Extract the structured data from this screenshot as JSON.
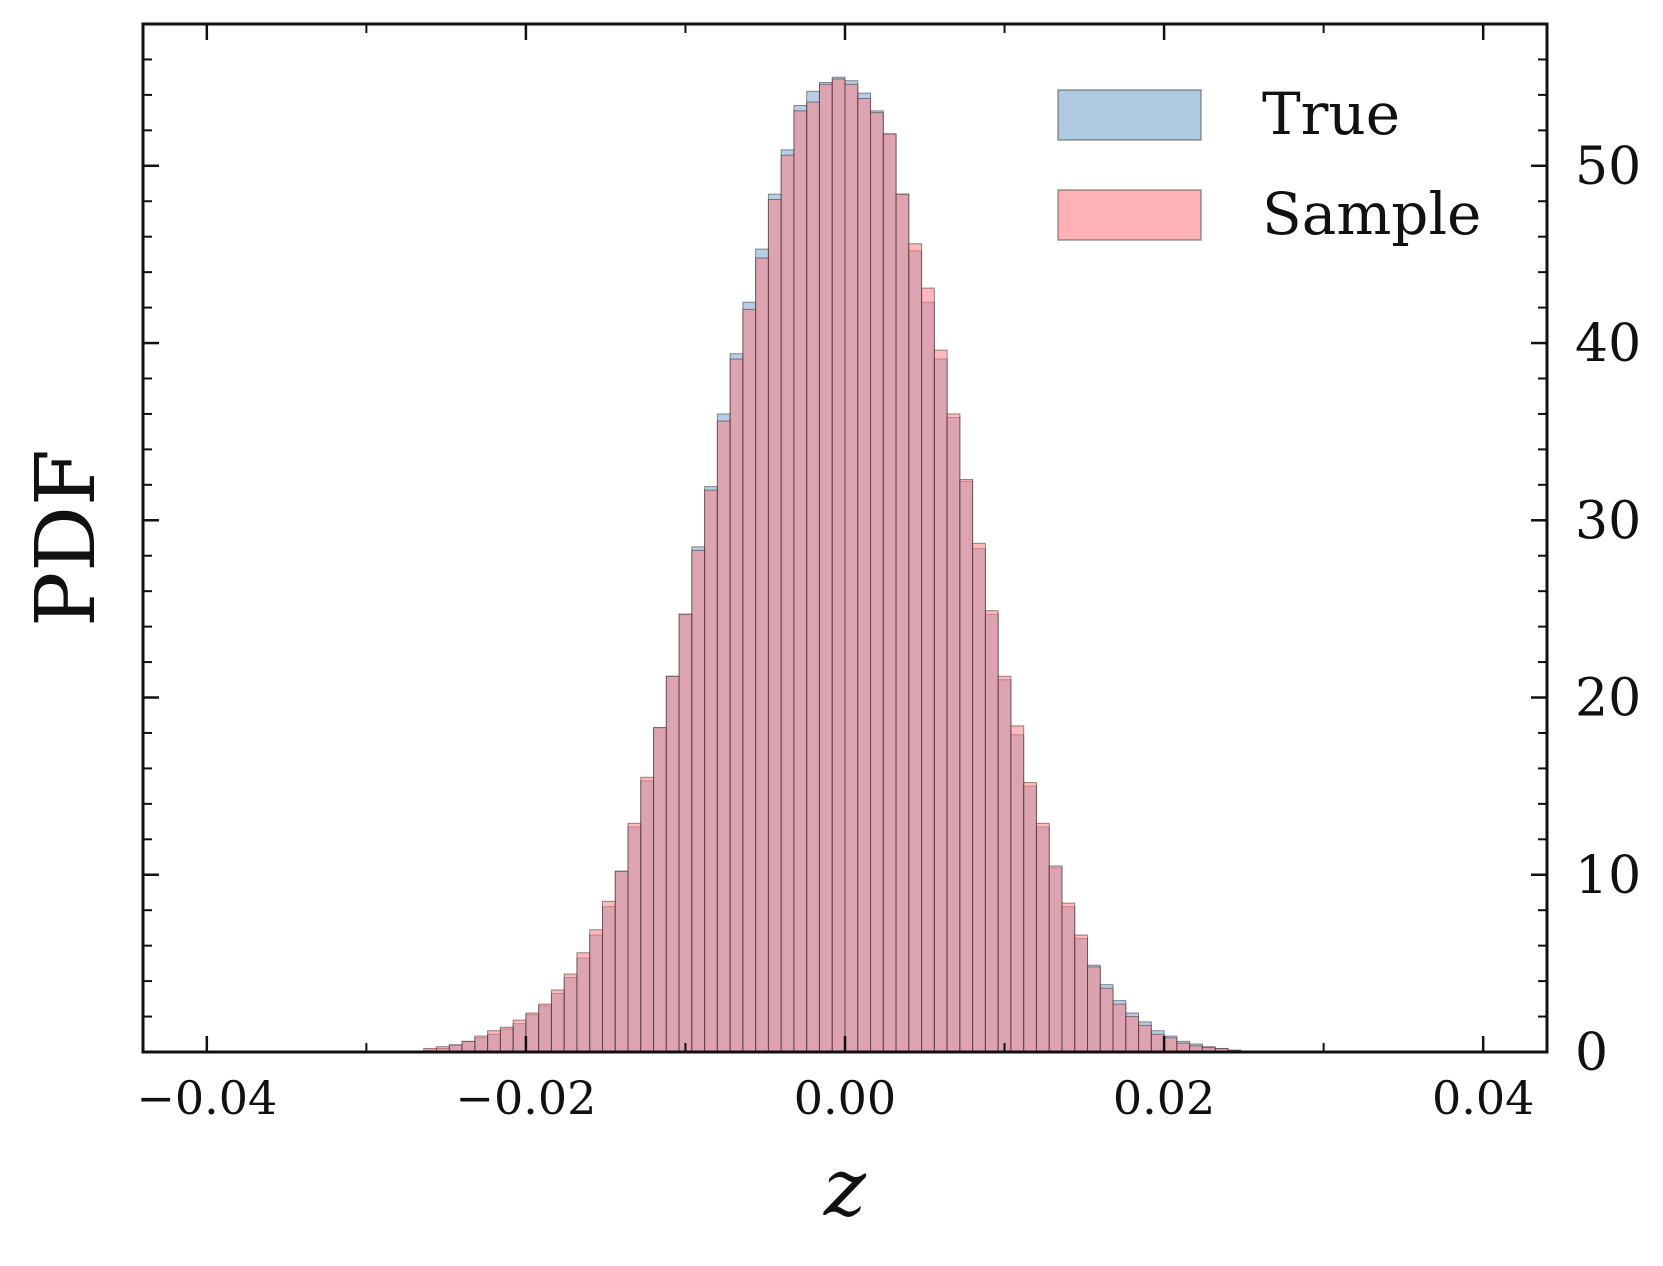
{
  "chart_data": {
    "type": "bar",
    "subtype": "overlaid-histogram",
    "xlabel": "z",
    "ylabel": "PDF",
    "xlim": [
      -0.044,
      0.044
    ],
    "ylim": [
      0,
      58
    ],
    "x_ticks": [
      -0.04,
      -0.02,
      0.0,
      0.02,
      0.04
    ],
    "x_tick_labels": [
      "−0.04",
      "−0.02",
      "0.00",
      "0.02",
      "0.04"
    ],
    "y_ticks": [
      0,
      10,
      20,
      30,
      40,
      50
    ],
    "y_tick_labels": [
      "0",
      "10",
      "20",
      "30",
      "40",
      "50"
    ],
    "y_axis_position": "right",
    "legend_position": "top-right",
    "grid": false,
    "bin_width": 0.0008,
    "bin_start": -0.0264,
    "series": [
      {
        "name": "True",
        "color": "#7ba7cf",
        "opacity": 0.55,
        "values": [
          0.1,
          0.2,
          0.4,
          0.6,
          0.8,
          1.0,
          1.3,
          1.6,
          2.1,
          2.6,
          3.3,
          4.2,
          5.3,
          6.6,
          8.2,
          10.2,
          12.7,
          15.3,
          18.3,
          21.2,
          24.7,
          28.5,
          31.9,
          36.0,
          39.4,
          42.3,
          45.3,
          48.4,
          50.9,
          53.4,
          54.2,
          54.7,
          55.0,
          54.8,
          54.1,
          53.1,
          51.8,
          48.4,
          45.2,
          42.3,
          39.1,
          35.8,
          32.2,
          28.4,
          24.7,
          21.0,
          17.9,
          15.0,
          12.7,
          10.4,
          8.2,
          6.4,
          4.9,
          3.8,
          2.9,
          2.2,
          1.7,
          1.2,
          0.9,
          0.6,
          0.45,
          0.3,
          0.2,
          0.1,
          0.05
        ]
      },
      {
        "name": "Sample",
        "color": "#ff7f85",
        "opacity": 0.55,
        "values": [
          0.2,
          0.3,
          0.4,
          0.6,
          0.9,
          1.2,
          1.4,
          1.8,
          2.2,
          2.7,
          3.5,
          4.4,
          5.6,
          6.9,
          8.5,
          10.2,
          12.9,
          15.5,
          18.3,
          21.2,
          24.7,
          28.3,
          31.7,
          35.6,
          39.1,
          41.9,
          44.8,
          48.1,
          50.6,
          53.1,
          53.6,
          54.6,
          54.9,
          54.6,
          53.8,
          53.0,
          51.8,
          48.4,
          45.6,
          43.1,
          39.6,
          36.0,
          32.3,
          28.7,
          24.9,
          21.2,
          18.4,
          15.2,
          12.9,
          10.5,
          8.4,
          6.6,
          4.8,
          3.6,
          2.7,
          2.0,
          1.5,
          1.0,
          0.8,
          0.5,
          0.35,
          0.25,
          0.2,
          0.1,
          0.05
        ]
      }
    ]
  },
  "legend": {
    "items": [
      {
        "label": "True",
        "color": "#7ba7cf"
      },
      {
        "label": "Sample",
        "color": "#ff7f85"
      }
    ]
  }
}
